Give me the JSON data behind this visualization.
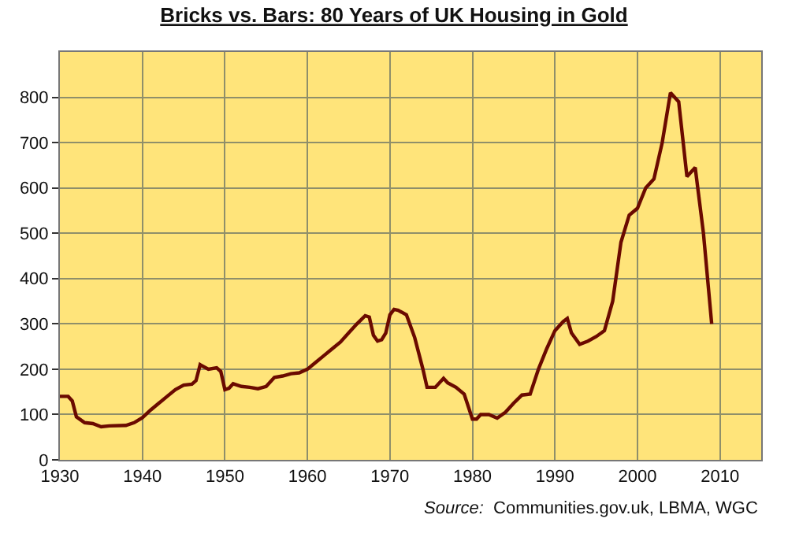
{
  "chart_data": {
    "type": "line",
    "title": "Bricks vs. Bars: 80 Years of UK Housing in Gold",
    "x": [
      1930,
      1931,
      1931.5,
      1932,
      1933,
      1934,
      1935,
      1936,
      1938,
      1939,
      1940,
      1941,
      1942,
      1943,
      1944,
      1945,
      1946,
      1946.5,
      1947,
      1948,
      1949,
      1949.5,
      1950,
      1950.5,
      1951,
      1952,
      1953,
      1954,
      1955,
      1956,
      1957,
      1958,
      1959,
      1960,
      1961,
      1962,
      1963,
      1964,
      1965,
      1966,
      1967,
      1967.5,
      1968,
      1968.5,
      1969,
      1969.5,
      1970,
      1970.5,
      1971,
      1972,
      1973,
      1974,
      1974.5,
      1975.5,
      1976.5,
      1977,
      1978,
      1979,
      1980,
      1980.5,
      1981,
      1982,
      1983,
      1984,
      1985,
      1986,
      1987,
      1988,
      1989,
      1990,
      1991,
      1991.5,
      1992,
      1993,
      1994,
      1995,
      1996,
      1997,
      1998,
      1999,
      2000,
      2001,
      2002,
      2003,
      2004,
      2005,
      2006,
      2007,
      2008,
      2009
    ],
    "series": [
      {
        "color": "#6b0a00",
        "values": [
          140,
          140,
          130,
          95,
          82,
          80,
          73,
          75,
          76,
          82,
          93,
          110,
          125,
          140,
          155,
          165,
          167,
          175,
          210,
          200,
          203,
          195,
          155,
          158,
          168,
          162,
          160,
          157,
          162,
          182,
          185,
          190,
          192,
          200,
          215,
          230,
          245,
          260,
          280,
          300,
          318,
          315,
          275,
          262,
          265,
          280,
          320,
          332,
          330,
          320,
          270,
          200,
          160,
          160,
          180,
          170,
          160,
          145,
          90,
          90,
          100,
          100,
          92,
          105,
          125,
          143,
          145,
          200,
          245,
          285,
          305,
          312,
          280,
          255,
          262,
          272,
          285,
          350,
          480,
          540,
          555,
          600,
          620,
          700,
          810,
          790,
          625,
          645,
          500,
          300
        ]
      }
    ],
    "xlim": [
      1930,
      2015
    ],
    "xticks": [
      1930,
      1940,
      1950,
      1960,
      1970,
      1980,
      1990,
      2000,
      2010
    ],
    "ylim": [
      0,
      900
    ],
    "yticks": [
      0,
      100,
      200,
      300,
      400,
      500,
      600,
      700,
      800
    ],
    "grid": true,
    "marker": "none",
    "line_style": "solid",
    "annotations": [
      "Source:  Communities.gov.uk, LBMA, WGC"
    ]
  }
}
